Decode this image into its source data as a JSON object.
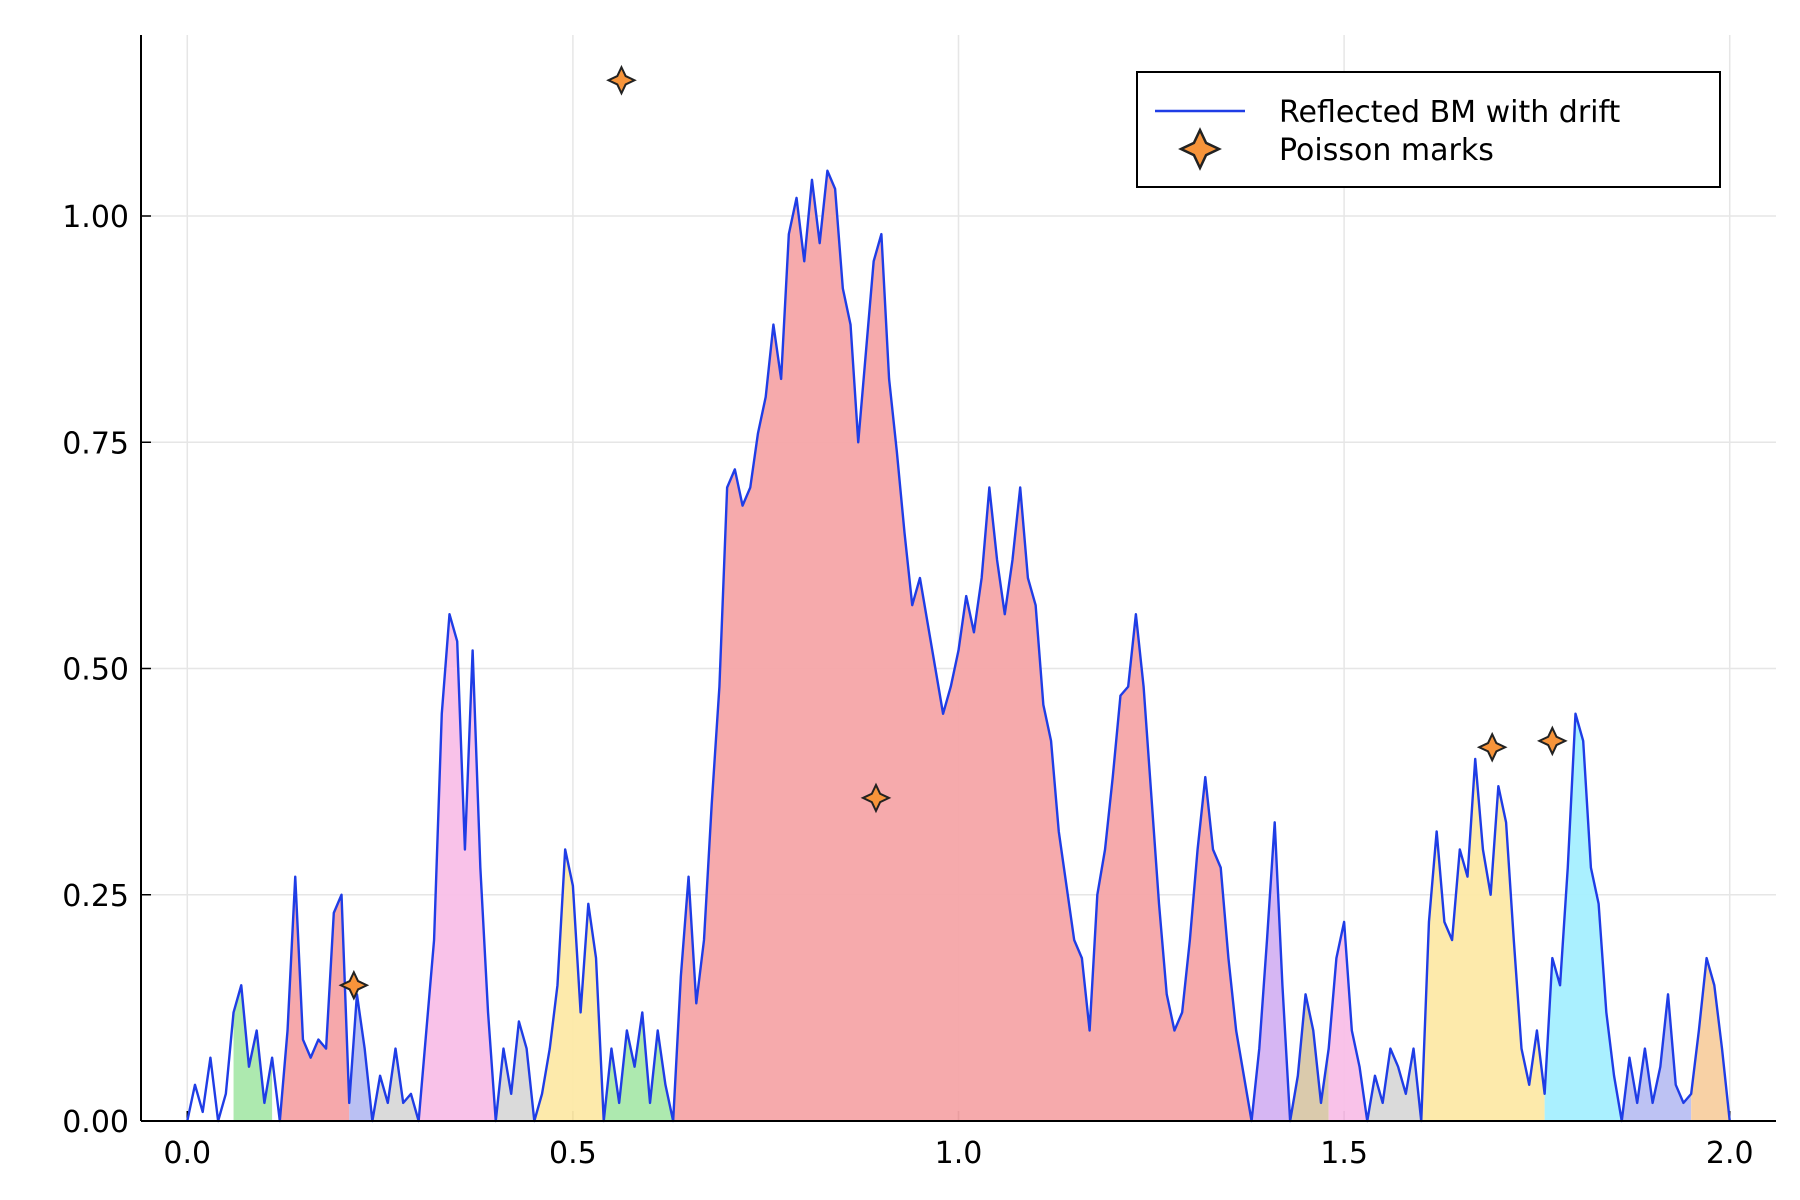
{
  "chart_data": {
    "type": "line",
    "xlim": [
      -0.06,
      2.06
    ],
    "ylim": [
      0,
      1.2
    ],
    "xticks": [
      {
        "value": 0,
        "label": "0.0"
      },
      {
        "value": 0.5,
        "label": "0.5"
      },
      {
        "value": 1,
        "label": "1.0"
      },
      {
        "value": 1.5,
        "label": "1.5"
      },
      {
        "value": 2,
        "label": "2.0"
      }
    ],
    "yticks": [
      {
        "value": 0,
        "label": "0.00"
      },
      {
        "value": 0.25,
        "label": "0.25"
      },
      {
        "value": 0.5,
        "label": "0.50"
      },
      {
        "value": 0.75,
        "label": "0.75"
      },
      {
        "value": 1,
        "label": "1.00"
      }
    ],
    "grid": true,
    "legend": "top-right",
    "series": [
      {
        "name": "Reflected BM with drift",
        "type": "line",
        "color": "#1f3de6",
        "x": [
          0,
          0.01,
          0.02,
          0.03,
          0.04,
          0.05,
          0.06,
          0.07,
          0.08,
          0.09,
          0.1,
          0.11,
          0.12,
          0.13,
          0.14,
          0.15,
          0.16,
          0.17,
          0.18,
          0.19,
          0.2,
          0.21,
          0.22,
          0.23,
          0.24,
          0.25,
          0.26,
          0.27,
          0.28,
          0.29,
          0.3,
          0.31,
          0.32,
          0.33,
          0.34,
          0.35,
          0.36,
          0.37,
          0.38,
          0.39,
          0.4,
          0.41,
          0.42,
          0.43,
          0.44,
          0.45,
          0.46,
          0.47,
          0.48,
          0.49,
          0.5,
          0.51,
          0.52,
          0.53,
          0.54,
          0.55,
          0.56,
          0.57,
          0.58,
          0.59,
          0.6,
          0.61,
          0.62,
          0.63,
          0.64,
          0.65,
          0.66,
          0.67,
          0.68,
          0.69,
          0.7,
          0.71,
          0.72,
          0.73,
          0.74,
          0.75,
          0.76,
          0.77,
          0.78,
          0.79,
          0.8,
          0.81,
          0.82,
          0.83,
          0.84,
          0.85,
          0.86,
          0.87,
          0.88,
          0.89,
          0.9,
          0.91,
          0.92,
          0.93,
          0.94,
          0.95,
          0.96,
          0.97,
          0.98,
          0.99,
          1,
          1.01,
          1.02,
          1.03,
          1.04,
          1.05,
          1.06,
          1.07,
          1.08,
          1.09,
          1.1,
          1.11,
          1.12,
          1.13,
          1.14,
          1.15,
          1.16,
          1.17,
          1.18,
          1.19,
          1.2,
          1.21,
          1.22,
          1.23,
          1.24,
          1.25,
          1.26,
          1.27,
          1.28,
          1.29,
          1.3,
          1.31,
          1.32,
          1.33,
          1.34,
          1.35,
          1.36,
          1.37,
          1.38,
          1.39,
          1.4,
          1.41,
          1.42,
          1.43,
          1.44,
          1.45,
          1.46,
          1.47,
          1.48,
          1.49,
          1.5,
          1.51,
          1.52,
          1.53,
          1.54,
          1.55,
          1.56,
          1.57,
          1.58,
          1.59,
          1.6,
          1.61,
          1.62,
          1.63,
          1.64,
          1.65,
          1.66,
          1.67,
          1.68,
          1.69,
          1.7,
          1.71,
          1.72,
          1.73,
          1.74,
          1.75,
          1.76,
          1.77,
          1.78,
          1.79,
          1.8,
          1.81,
          1.82,
          1.83,
          1.84,
          1.85,
          1.86,
          1.87,
          1.88,
          1.89,
          1.9,
          1.91,
          1.92,
          1.93,
          1.94,
          1.95,
          1.96,
          1.97,
          1.98,
          1.99,
          2
        ],
        "values": [
          0,
          0.04,
          0.01,
          0.07,
          0,
          0.03,
          0.12,
          0.15,
          0.06,
          0.1,
          0.02,
          0.07,
          0,
          0.1,
          0.27,
          0.09,
          0.07,
          0.09,
          0.08,
          0.23,
          0.25,
          0.02,
          0.14,
          0.08,
          0,
          0.05,
          0.02,
          0.08,
          0.02,
          0.03,
          0,
          0.1,
          0.2,
          0.45,
          0.56,
          0.53,
          0.3,
          0.52,
          0.28,
          0.12,
          0,
          0.08,
          0.03,
          0.11,
          0.08,
          0,
          0.03,
          0.08,
          0.15,
          0.3,
          0.26,
          0.12,
          0.24,
          0.18,
          0,
          0.08,
          0.02,
          0.1,
          0.06,
          0.12,
          0.02,
          0.1,
          0.04,
          0,
          0.16,
          0.27,
          0.13,
          0.2,
          0.35,
          0.48,
          0.7,
          0.72,
          0.68,
          0.7,
          0.76,
          0.8,
          0.88,
          0.82,
          0.98,
          1.02,
          0.95,
          1.04,
          0.97,
          1.05,
          1.03,
          0.92,
          0.88,
          0.75,
          0.85,
          0.95,
          0.98,
          0.82,
          0.74,
          0.65,
          0.57,
          0.6,
          0.55,
          0.5,
          0.45,
          0.48,
          0.52,
          0.58,
          0.54,
          0.6,
          0.7,
          0.62,
          0.56,
          0.62,
          0.7,
          0.6,
          0.57,
          0.46,
          0.42,
          0.32,
          0.26,
          0.2,
          0.18,
          0.1,
          0.25,
          0.3,
          0.38,
          0.47,
          0.48,
          0.56,
          0.48,
          0.36,
          0.24,
          0.14,
          0.1,
          0.12,
          0.2,
          0.3,
          0.38,
          0.3,
          0.28,
          0.18,
          0.1,
          0.05,
          0,
          0.08,
          0.2,
          0.33,
          0.15,
          0,
          0.05,
          0.14,
          0.1,
          0.02,
          0.08,
          0.18,
          0.22,
          0.1,
          0.06,
          0,
          0.05,
          0.02,
          0.08,
          0.06,
          0.03,
          0.08,
          0,
          0.22,
          0.32,
          0.22,
          0.2,
          0.3,
          0.27,
          0.4,
          0.3,
          0.25,
          0.37,
          0.33,
          0.2,
          0.08,
          0.04,
          0.1,
          0.03,
          0.18,
          0.15,
          0.28,
          0.45,
          0.42,
          0.28,
          0.24,
          0.12,
          0.05,
          0,
          0.07,
          0.02,
          0.08,
          0.02,
          0.06,
          0.14,
          0.04,
          0.02,
          0.03,
          0.1,
          0.18,
          0.15,
          0.08,
          0
        ]
      },
      {
        "name": "Poisson marks",
        "type": "scatter",
        "color": "#f7943a",
        "x": [
          0.216,
          0.563,
          0.893,
          1.692,
          1.77
        ],
        "values": [
          0.15,
          1.15,
          0.357,
          0.413,
          0.42
        ]
      }
    ],
    "excursions": [
      {
        "start": 0.06,
        "end": 0.11,
        "color": "#a9e8ab"
      },
      {
        "start": 0.12,
        "end": 0.21,
        "color": "#f5a3a7"
      },
      {
        "start": 0.21,
        "end": 0.24,
        "color": "#b6bdf2"
      },
      {
        "start": 0.24,
        "end": 0.3,
        "color": "#d8d8d8"
      },
      {
        "start": 0.3,
        "end": 0.4,
        "color": "#f9bfe8"
      },
      {
        "start": 0.4,
        "end": 0.45,
        "color": "#d8d8d8"
      },
      {
        "start": 0.45,
        "end": 0.54,
        "color": "#fde9a6"
      },
      {
        "start": 0.54,
        "end": 0.63,
        "color": "#a9e8ab"
      },
      {
        "start": 0.63,
        "end": 1.38,
        "color": "#f5a5a8"
      },
      {
        "start": 1.38,
        "end": 1.43,
        "color": "#d4b2f2"
      },
      {
        "start": 1.43,
        "end": 1.48,
        "color": "#d8c7a8"
      },
      {
        "start": 1.48,
        "end": 1.53,
        "color": "#f9bfe8"
      },
      {
        "start": 1.53,
        "end": 1.6,
        "color": "#d8d8d8"
      },
      {
        "start": 1.6,
        "end": 1.76,
        "color": "#fde9a6"
      },
      {
        "start": 1.76,
        "end": 1.86,
        "color": "#a5efff"
      },
      {
        "start": 1.86,
        "end": 1.95,
        "color": "#b9bff2"
      },
      {
        "start": 1.95,
        "end": 2,
        "color": "#f8cfa0"
      }
    ]
  }
}
